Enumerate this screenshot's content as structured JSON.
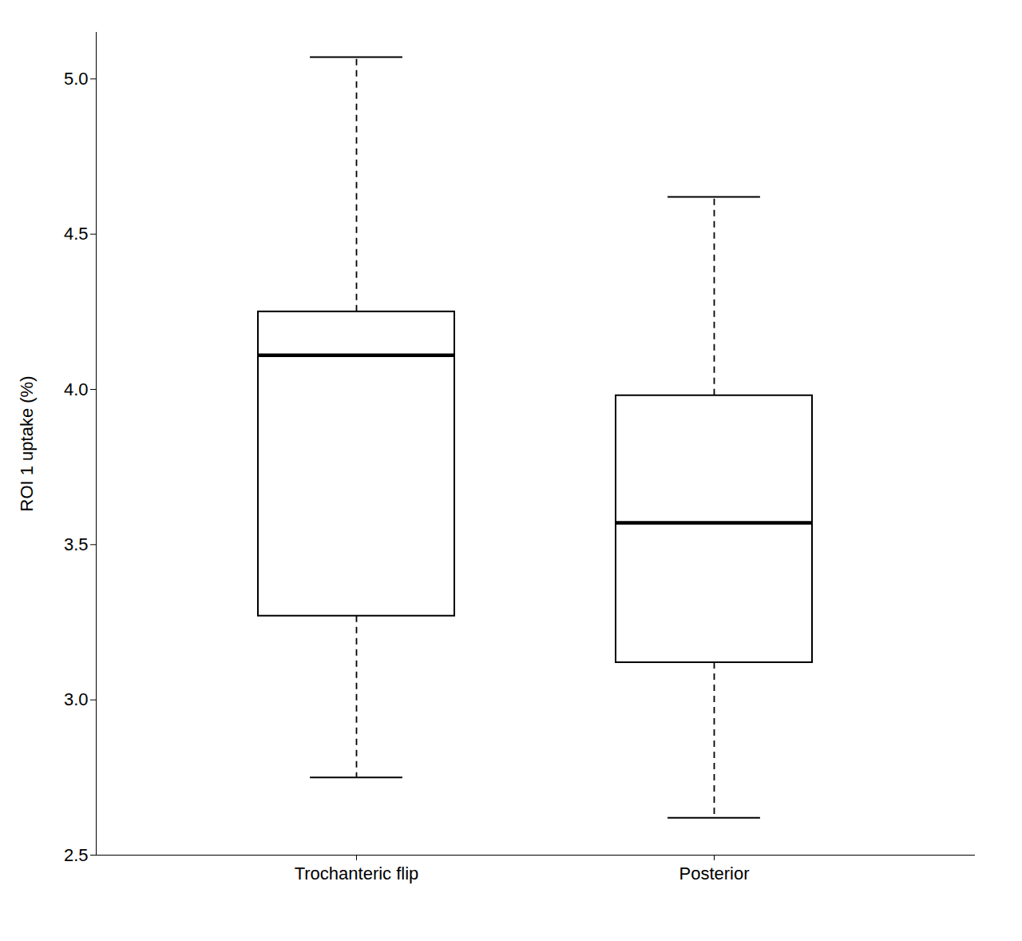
{
  "chart_data": {
    "type": "box",
    "categories": [
      "Trochanteric flip",
      "Posterior"
    ],
    "q1": [
      3.27,
      3.12
    ],
    "median": [
      4.11,
      3.57
    ],
    "q3": [
      4.25,
      3.98
    ],
    "whisker_low": [
      2.75,
      2.62
    ],
    "whisker_high": [
      5.07,
      4.62
    ],
    "outliers": [
      [],
      []
    ],
    "ylabel": "ROI 1 uptake (%)",
    "ylim": [
      2.5,
      5.15
    ],
    "yticks": [
      2.5,
      {
        "value": 3.0,
        "label": "3.0"
      },
      3.5,
      {
        "value": 4.0,
        "label": "4.0"
      },
      4.5,
      {
        "value": 5.0,
        "label": "5.0"
      }
    ],
    "color": "#000000",
    "line_style": "dashed",
    "grid": false
  }
}
